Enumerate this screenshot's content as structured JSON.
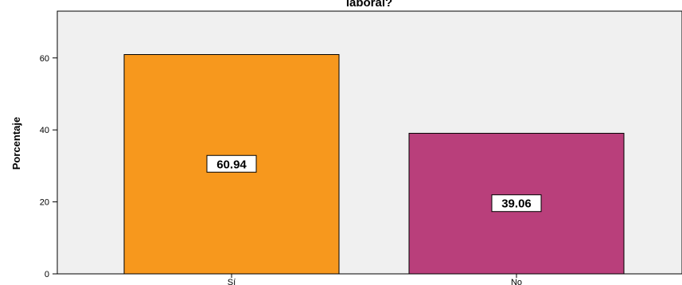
{
  "chart_data": {
    "type": "bar",
    "title": "laboral?",
    "xlabel": "",
    "ylabel": "Porcentaje",
    "categories": [
      "Sí",
      "No"
    ],
    "values": [
      60.94,
      39.06
    ],
    "data_labels": [
      "60.94",
      "39.06"
    ],
    "colors": [
      "#f7981d",
      "#b93f7b"
    ],
    "ylim": [
      0,
      73
    ],
    "yticks": [
      0,
      20,
      40,
      60
    ],
    "ytick_labels": [
      "0",
      "20",
      "40",
      "60"
    ],
    "plot_background": "#f0f0f0",
    "grid": false,
    "legend": "none"
  }
}
